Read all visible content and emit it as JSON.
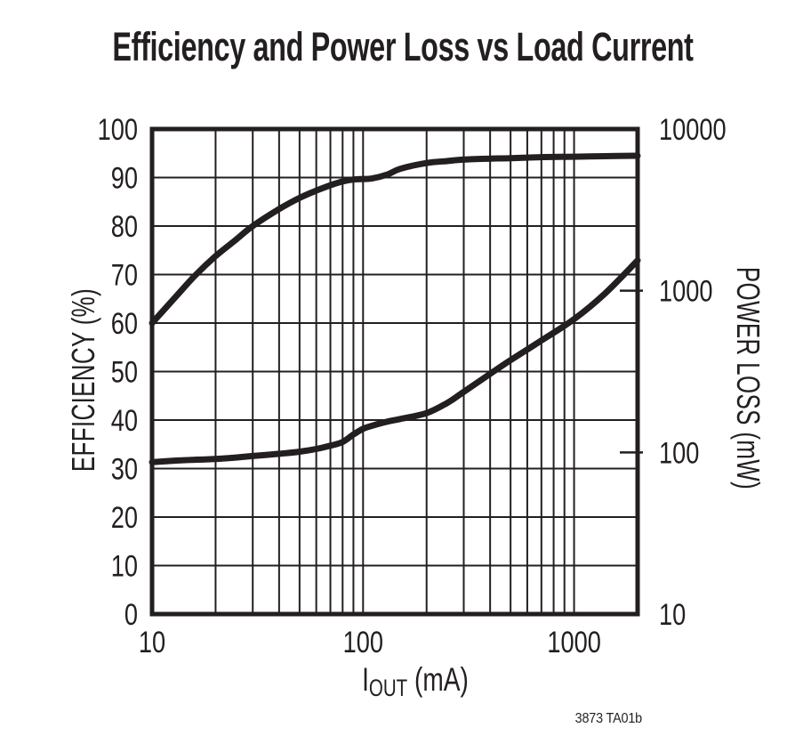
{
  "title": "Efficiency and Power Loss vs Load Current",
  "footnote": "3873 TA01b",
  "colors": {
    "ink": "#231f20",
    "background": "#ffffff"
  },
  "chart_data": {
    "type": "line",
    "title": "Efficiency and Power Loss vs Load Current",
    "grid": true,
    "legend": false,
    "line_color": "#231f20",
    "xlabel": {
      "main": "I",
      "sub": "OUT",
      "unit": " (mA)"
    },
    "x_axis": {
      "scale": "log",
      "min": 10,
      "max": 2000,
      "tick_labels": [
        10,
        100,
        1000
      ],
      "gridlines": [
        20,
        30,
        40,
        50,
        60,
        70,
        80,
        90,
        100,
        200,
        300,
        400,
        500,
        600,
        700,
        800,
        900,
        1000
      ]
    },
    "y_left": {
      "label": "EFFICIENCY (%)",
      "scale": "linear",
      "min": 0,
      "max": 100,
      "tick_labels": [
        100,
        90,
        80,
        70,
        60,
        50,
        40,
        30,
        20,
        10,
        0
      ],
      "gridlines": [
        10,
        20,
        30,
        40,
        50,
        60,
        70,
        80,
        90
      ]
    },
    "y_right": {
      "label": "POWER LOSS (mW)",
      "scale": "log",
      "min": 10,
      "max": 10000,
      "tick_labels": [
        10000,
        1000,
        100,
        10
      ]
    },
    "series": [
      {
        "name": "Efficiency",
        "axis": "left",
        "x": [
          10,
          13,
          16,
          20,
          25,
          30,
          40,
          50,
          60,
          70,
          80,
          90,
          100,
          110,
          130,
          150,
          200,
          250,
          300,
          400,
          500,
          700,
          1000,
          1400,
          2000
        ],
        "y": [
          60,
          65.5,
          69.8,
          73.8,
          77.2,
          80,
          83.5,
          85.8,
          87.3,
          88.4,
          89.2,
          89.6,
          89.7,
          89.8,
          90.6,
          91.8,
          93.0,
          93.4,
          93.7,
          93.9,
          94.0,
          94.2,
          94.3,
          94.4,
          94.5
        ]
      },
      {
        "name": "Power Loss",
        "axis": "right",
        "x": [
          10,
          13,
          16,
          20,
          25,
          30,
          40,
          50,
          60,
          70,
          80,
          90,
          100,
          110,
          130,
          150,
          200,
          250,
          300,
          400,
          500,
          700,
          1000,
          1400,
          2000
        ],
        "y": [
          87,
          89,
          90,
          91,
          93,
          95,
          98,
          101,
          105,
          110,
          116,
          129,
          140,
          146,
          155,
          161,
          175,
          202,
          237,
          306,
          372,
          492,
          667,
          960,
          1540
        ]
      }
    ]
  }
}
